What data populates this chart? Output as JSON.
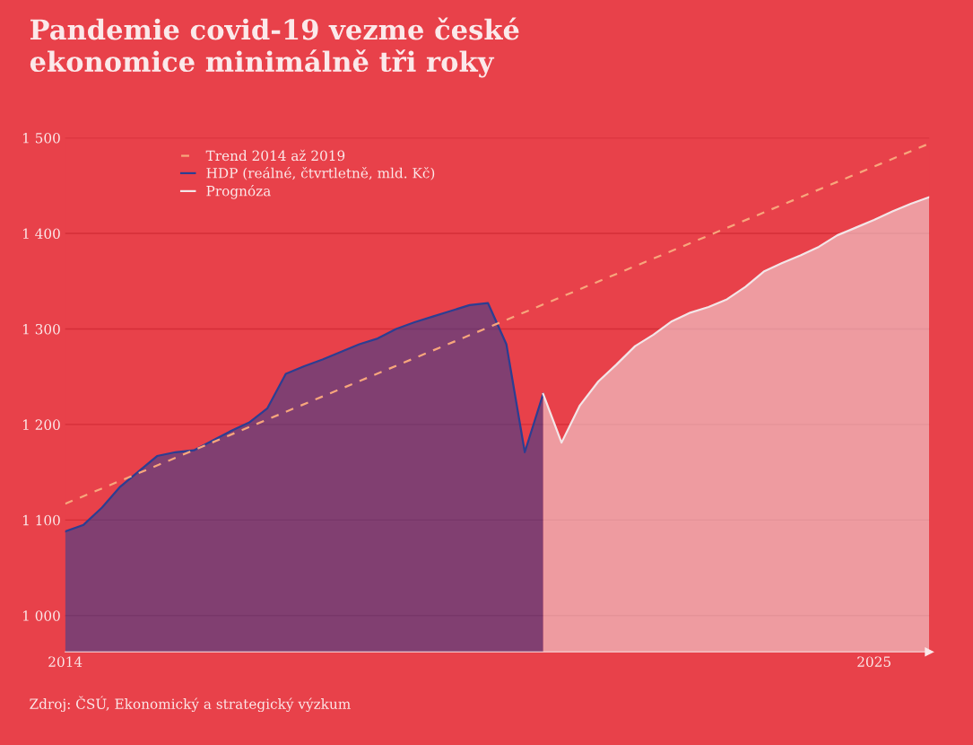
{
  "chart_data": {
    "type": "area",
    "title": "Pandemie covid-19 vezme české\nekonomice minimálně tři roky",
    "annotations": [
      "Zdroj: ČSÚ, Ekonomický a strategický výzkum"
    ],
    "xlim": [
      2014,
      2025.75
    ],
    "xticks": [
      2014,
      2025
    ],
    "ylim": [
      962,
      1500
    ],
    "yticks": [
      {
        "value": 1000,
        "label": "1 000"
      },
      {
        "value": 1100,
        "label": "1 100"
      },
      {
        "value": 1200,
        "label": "1 200"
      },
      {
        "value": 1300,
        "label": "1 300"
      },
      {
        "value": 1400,
        "label": "1 400"
      },
      {
        "value": 1500,
        "label": "1 500"
      }
    ],
    "grid": "y",
    "legend": "top left",
    "marker": "none",
    "series": [
      {
        "name": "Trend 2014 až 2019",
        "type": "line",
        "line_style": "dashed",
        "color": "#f7a67c",
        "x": [
          2014,
          2025.75
        ],
        "values": [
          1117,
          1494
        ]
      },
      {
        "name": "HDP (reálné, čtvrtletně, mld. Kč)",
        "color": "#2c3e92",
        "x": [
          2014,
          2014.25,
          2014.5,
          2014.75,
          2015,
          2015.25,
          2015.5,
          2015.75,
          2016,
          2016.25,
          2016.5,
          2016.75,
          2017,
          2017.25,
          2017.5,
          2017.75,
          2018,
          2018.25,
          2018.5,
          2018.75,
          2019,
          2019.25,
          2019.5,
          2019.75,
          2020,
          2020.25,
          2020.5
        ],
        "values": [
          1088,
          1095,
          1113,
          1135,
          1151,
          1167,
          1171,
          1173,
          1183,
          1193,
          1202,
          1217,
          1253,
          1261,
          1268,
          1276,
          1284,
          1290,
          1300,
          1307,
          1313,
          1319,
          1325,
          1327,
          1284,
          1171,
          1232
        ]
      },
      {
        "name": "Prognóza",
        "color": "#f3e6e8",
        "x": [
          2020.5,
          2020.75,
          2021,
          2021.25,
          2021.5,
          2021.75,
          2022,
          2022.25,
          2022.5,
          2022.75,
          2023,
          2023.25,
          2023.5,
          2023.75,
          2024,
          2024.25,
          2024.5,
          2024.75,
          2025,
          2025.25,
          2025.5,
          2025.75
        ],
        "values": [
          1232,
          1181,
          1220,
          1245,
          1263,
          1282,
          1294,
          1308,
          1317,
          1323,
          1331,
          1344,
          1360,
          1369,
          1377,
          1386,
          1398,
          1406,
          1414,
          1423,
          1431,
          1438
        ]
      }
    ]
  }
}
